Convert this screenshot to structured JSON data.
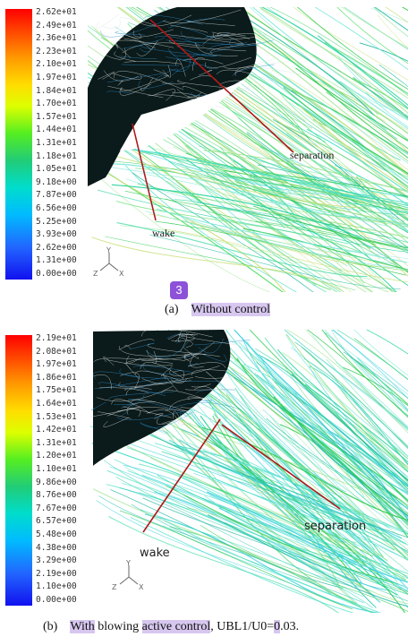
{
  "panel_a": {
    "colorbar_ticks": [
      "2.62e+01",
      "2.49e+01",
      "2.36e+01",
      "2.23e+01",
      "2.10e+01",
      "1.97e+01",
      "1.84e+01",
      "1.70e+01",
      "1.57e+01",
      "1.44e+01",
      "1.31e+01",
      "1.18e+01",
      "1.05e+01",
      "9.18e+00",
      "7.87e+00",
      "6.56e+00",
      "5.25e+00",
      "3.93e+00",
      "2.62e+00",
      "1.31e+00",
      "0.00e+00"
    ],
    "label_wake": "wake",
    "label_separation": "separation",
    "badge": "3",
    "caption_tag": "(a)",
    "caption_text": "Without control",
    "axis_labels": {
      "y": "Y",
      "z": "Z",
      "x": "X"
    }
  },
  "panel_b": {
    "colorbar_ticks": [
      "2.19e+01",
      "2.08e+01",
      "1.97e+01",
      "1.86e+01",
      "1.75e+01",
      "1.64e+01",
      "1.53e+01",
      "1.42e+01",
      "1.31e+01",
      "1.20e+01",
      "1.10e+01",
      "9.86e+00",
      "8.76e+00",
      "7.67e+00",
      "6.57e+00",
      "5.48e+00",
      "4.38e+00",
      "3.29e+00",
      "2.19e+00",
      "1.10e+00",
      "0.00e+00"
    ],
    "label_wake": "wake",
    "label_separation": "separation",
    "caption_tag": "(b)",
    "caption_with": "With",
    "caption_blowing": "blowing",
    "caption_active": "active control",
    "caption_ubl": ", UBL1/U0=",
    "caption_zero": "0",
    "caption_end": ".03.",
    "axis_labels": {
      "y": "Y",
      "z": "Z",
      "x": "X"
    }
  },
  "colormap": [
    "#ff0000",
    "#ff4400",
    "#ff8800",
    "#ffbb00",
    "#ffee00",
    "#ccff00",
    "#88ff00",
    "#33dd33",
    "#22cc66",
    "#00ddaa",
    "#00ddee",
    "#00bbff",
    "#0088ff",
    "#2255ff",
    "#1122ff"
  ]
}
